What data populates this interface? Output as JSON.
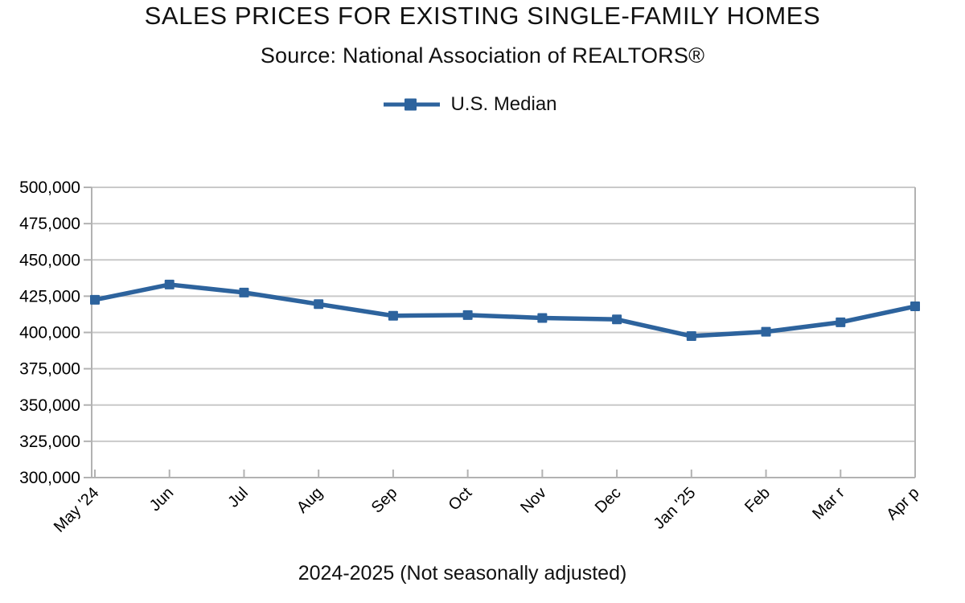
{
  "chart_data": {
    "type": "line",
    "title": "SALES PRICES FOR EXISTING SINGLE-FAMILY HOMES",
    "subtitle": "Source: National Association of REALTORS®",
    "xlabel": "2024-2025 (Not seasonally adjusted)",
    "categories": [
      "May '24",
      "Jun",
      "Jul",
      "Aug",
      "Sep",
      "Oct",
      "Nov",
      "Dec",
      "Jan '25",
      "Feb",
      "Mar r",
      "Apr p"
    ],
    "series": [
      {
        "name": "U.S. Median",
        "values": [
          422500,
          433000,
          427500,
          419500,
          411500,
          412000,
          410000,
          409000,
          397500,
          400500,
          407000,
          418000
        ]
      }
    ],
    "ylim": [
      300000,
      500000
    ],
    "yticks": [
      300000,
      325000,
      350000,
      375000,
      400000,
      425000,
      450000,
      475000,
      500000
    ],
    "grid": "horizontal",
    "legend_position": "top",
    "marker": "square",
    "colors": {
      "line": "#2d639d",
      "gridline": "#c9c9c9",
      "axis": "#b2b2b2",
      "text": "#000000"
    }
  }
}
